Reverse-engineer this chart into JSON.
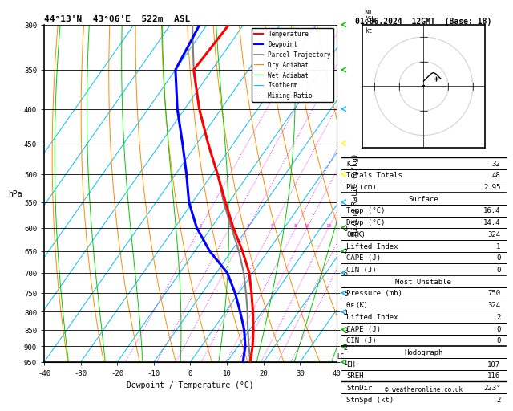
{
  "title_left": "44°13'N  43°06'E  522m  ASL",
  "title_right": "01.06.2024  12GMT  (Base: 18)",
  "xlabel": "Dewpoint / Temperature (°C)",
  "ylabel_left": "hPa",
  "ylabel_right_main": "Mixing Ratio (g/kg)",
  "xlim": [
    -40,
    40
  ],
  "pmin": 300,
  "pmax": 950,
  "pressure_levels": [
    300,
    350,
    400,
    450,
    500,
    550,
    600,
    650,
    700,
    750,
    800,
    850,
    900,
    950
  ],
  "mixing_ratio_lines": [
    1,
    2,
    3,
    5,
    8,
    10,
    15,
    20,
    25
  ],
  "temp_profile_p": [
    950,
    900,
    850,
    800,
    750,
    700,
    650,
    600,
    550,
    500,
    450,
    400,
    350,
    300
  ],
  "temp_profile_t": [
    16.4,
    14.0,
    11.0,
    7.5,
    3.5,
    -1.0,
    -7.0,
    -14.0,
    -21.0,
    -28.5,
    -37.0,
    -46.0,
    -55.0,
    -54.0
  ],
  "dewp_profile_p": [
    950,
    900,
    850,
    800,
    750,
    700,
    650,
    600,
    550,
    500,
    450,
    400,
    350,
    300
  ],
  "dewp_profile_t": [
    14.4,
    12.0,
    8.5,
    4.0,
    -1.0,
    -7.0,
    -16.0,
    -24.0,
    -31.0,
    -37.0,
    -44.0,
    -52.0,
    -60.0,
    -62.0
  ],
  "parcel_profile_p": [
    950,
    900,
    850,
    800,
    750,
    700,
    650,
    600,
    550,
    500,
    450,
    400,
    350,
    300
  ],
  "parcel_profile_t": [
    16.4,
    13.0,
    9.5,
    6.0,
    2.0,
    -2.5,
    -8.0,
    -14.5,
    -21.5,
    -28.5,
    -37.0,
    -46.0,
    -55.0,
    -64.0
  ],
  "lcl_pressure": 930,
  "stats": {
    "K": 32,
    "Totals_Totals": 48,
    "PW_cm": 2.95,
    "Surface_Temp": 16.4,
    "Surface_Dewp": 14.4,
    "Surface_ThetaE": 324,
    "Surface_LI": 1,
    "Surface_CAPE": 0,
    "Surface_CIN": 0,
    "MU_Pressure": 750,
    "MU_ThetaE": 324,
    "MU_LI": 2,
    "MU_CAPE": 0,
    "MU_CIN": 0,
    "EH": 107,
    "SREH": 116,
    "StmDir": 223,
    "StmSpd": 2
  }
}
